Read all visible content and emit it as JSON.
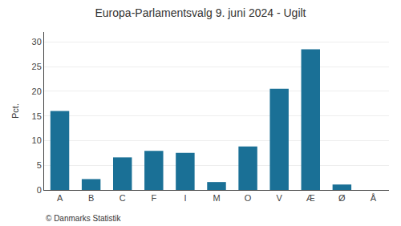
{
  "chart_data": {
    "type": "bar",
    "title": "Europa-Parlamentsvalg 9. juni 2024 - Ugilt",
    "categories": [
      "A",
      "B",
      "C",
      "F",
      "I",
      "M",
      "O",
      "V",
      "Æ",
      "Ø",
      "Å"
    ],
    "values": [
      16.0,
      2.2,
      6.6,
      7.9,
      7.5,
      1.6,
      8.8,
      20.5,
      28.5,
      1.1,
      0.0
    ],
    "color": "#1a7096",
    "ylabel": "Pct.",
    "ylim": [
      0,
      32
    ],
    "yticks": [
      0,
      5,
      10,
      15,
      20,
      25,
      30
    ],
    "grid": true,
    "annotations": [
      "© Danmarks Statistik"
    ]
  }
}
